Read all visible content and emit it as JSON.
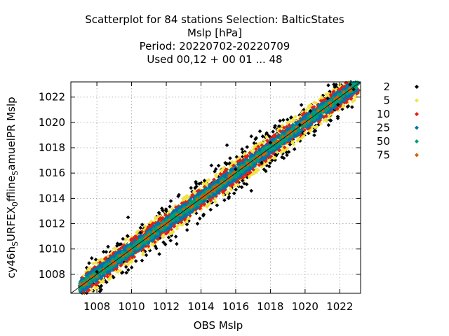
{
  "chart_data": {
    "type": "scatter",
    "title_lines": [
      "Scatterplot for   84 stations Selection: BalticStates",
      "Mslp [hPa]",
      "Period: 20220702-20220709",
      "Used  00,12  + 00 01 ... 48"
    ],
    "xlabel": "OBS Mslp",
    "ylabel_parts": [
      "cy46h",
      "S",
      "URFEX",
      "0",
      "ffline",
      "S",
      "amuelPR Mslp"
    ],
    "xlim": [
      1006.5,
      1023.2
    ],
    "ylim": [
      1006.5,
      1023.2
    ],
    "xticks": [
      1008,
      1010,
      1012,
      1014,
      1016,
      1018,
      1020,
      1022
    ],
    "yticks": [
      1008,
      1010,
      1012,
      1014,
      1016,
      1018,
      1020,
      1022
    ],
    "grid": true,
    "diagonal": true,
    "legend_placement": "right",
    "series": [
      {
        "name": "2",
        "color": "#000000"
      },
      {
        "name": "5",
        "color": "#f0e442"
      },
      {
        "name": "10",
        "color": "#e51e10"
      },
      {
        "name": "25",
        "color": "#0072b2"
      },
      {
        "name": "50",
        "color": "#009e73"
      },
      {
        "name": "75",
        "color": "#d55e00"
      }
    ],
    "band_model": {
      "x_range": [
        1007,
        1023.1
      ],
      "black_offsets": [
        -1.6,
        1.6
      ],
      "yellow_offsets": [
        -1.1,
        1.1
      ],
      "red_offsets": [
        -0.8,
        0.8
      ],
      "blue_offsets": [
        -0.55,
        0.55
      ],
      "green_offsets": [
        -0.3,
        0.3
      ],
      "orange_offsets": [
        -0.15,
        0.15
      ]
    },
    "outliers": [
      [
        1009.8,
        1012.5
      ],
      [
        1013.7,
        1015.3
      ],
      [
        1014.2,
        1015.4
      ],
      [
        1014.6,
        1016.6
      ],
      [
        1015.5,
        1018.2
      ],
      [
        1016.0,
        1016.3
      ],
      [
        1016.9,
        1018.9
      ],
      [
        1017.4,
        1019.3
      ],
      [
        1018.1,
        1017.0
      ],
      [
        1018.5,
        1019.7
      ],
      [
        1019.2,
        1020.4
      ],
      [
        1020.3,
        1020.9
      ],
      [
        1021.9,
        1021.4
      ],
      [
        1022.6,
        1023.0
      ],
      [
        1022.8,
        1022.6
      ],
      [
        1008.0,
        1008.2
      ],
      [
        1011.6,
        1009.6
      ],
      [
        1013.2,
        1011.5
      ],
      [
        1013.8,
        1012.0
      ],
      [
        1012.6,
        1010.4
      ],
      [
        1016.4,
        1015.4
      ],
      [
        1016.9,
        1014.6
      ],
      [
        1017.5,
        1016.8
      ],
      [
        1018.0,
        1018.4
      ],
      [
        1019.7,
        1019.8
      ],
      [
        1021.3,
        1021.9
      ],
      [
        1009.5,
        1010.8
      ],
      [
        1010.5,
        1011.3
      ],
      [
        1012.0,
        1013.0
      ]
    ]
  }
}
